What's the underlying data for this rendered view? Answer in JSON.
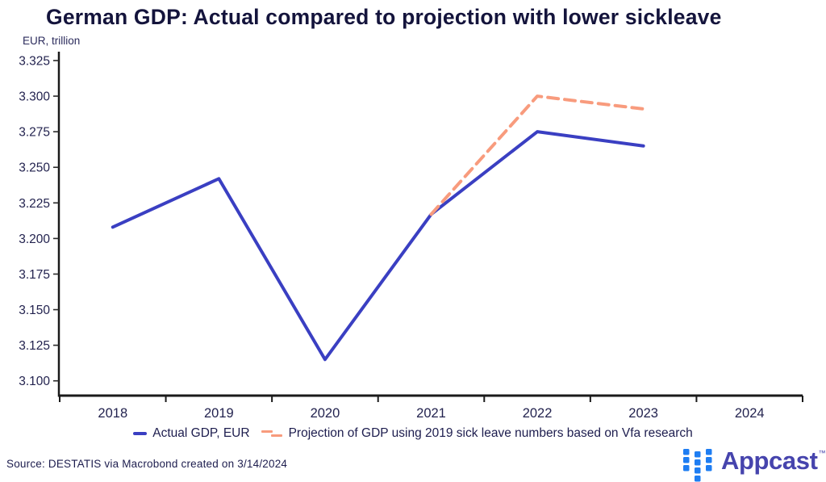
{
  "header": {
    "title": "German GDP: Actual compared to projection with lower sickleave"
  },
  "chart": {
    "units_label": "EUR, trillion"
  },
  "chart_data": {
    "type": "line",
    "title": "German GDP: Actual compared to projection with lower sickleave",
    "ylabel": "EUR, trillion",
    "xlabel": "",
    "x_categories": [
      "2018",
      "2019",
      "2020",
      "2021",
      "2022",
      "2023",
      "2024"
    ],
    "ylim": [
      3.1,
      3.325
    ],
    "ytick_values": [
      3.1,
      3.125,
      3.15,
      3.175,
      3.2,
      3.225,
      3.25,
      3.275,
      3.3,
      3.325
    ],
    "ytick_labels": [
      "3.100",
      "3.125",
      "3.150",
      "3.175",
      "3.200",
      "3.225",
      "3.250",
      "3.275",
      "3.300",
      "3.325"
    ],
    "grid": false,
    "legend_position": "bottom",
    "series": [
      {
        "name": "Actual GDP, EUR",
        "color": "#3a3fc2",
        "style": "solid",
        "x": [
          2018,
          2019,
          2020,
          2021,
          2022,
          2023
        ],
        "values": [
          3.208,
          3.242,
          3.115,
          3.217,
          3.275,
          3.265
        ]
      },
      {
        "name": "Projection of GDP using 2019 sick leave numbers based on Vfa research",
        "color": "#f89b7d",
        "style": "dashed",
        "x": [
          2021,
          2022,
          2023
        ],
        "values": [
          3.217,
          3.3,
          3.291
        ]
      }
    ]
  },
  "footer": {
    "source": "Source: DESTATIS via Macrobond created on 3/14/2024",
    "brand_name": "Appcast",
    "trademark": "™"
  },
  "colors": {
    "actual_line": "#3a3fc2",
    "projection_line": "#f89b7d",
    "axis": "#1a1a1a",
    "tick_text": "#23234f",
    "title_text": "#14143c",
    "brand_icon_blue": "#1e7df2",
    "brand_text_indigo": "#4644ad"
  }
}
